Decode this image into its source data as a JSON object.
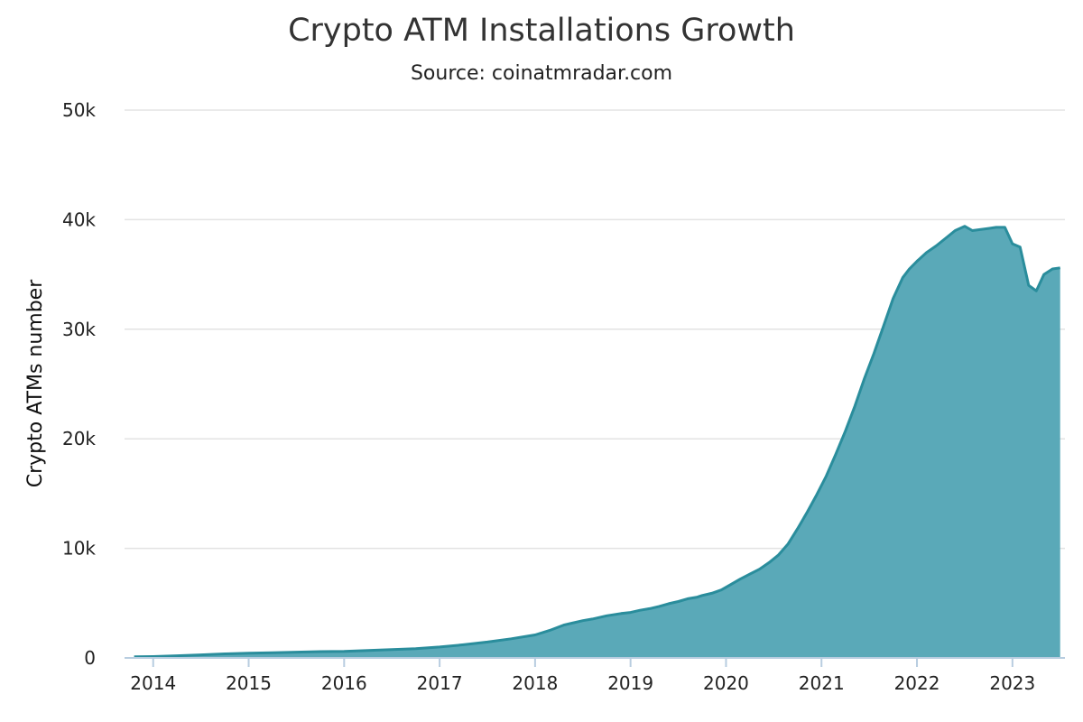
{
  "chart_data": {
    "type": "area",
    "title": "Crypto ATM Installations Growth",
    "subtitle": "Source: coinatmradar.com",
    "xlabel": "",
    "ylabel": "Crypto ATMs number",
    "xlim": [
      2013.7,
      2023.55
    ],
    "ylim": [
      0,
      50000
    ],
    "x_ticks": [
      2014,
      2015,
      2016,
      2017,
      2018,
      2019,
      2020,
      2021,
      2022,
      2023
    ],
    "y_ticks": [
      0,
      10000,
      20000,
      30000,
      40000,
      50000
    ],
    "y_tick_labels": [
      "0",
      "10k",
      "20k",
      "30k",
      "40k",
      "50k"
    ],
    "grid": "horizontal",
    "color": "#5aa9b8",
    "line_color": "#2a8d9c",
    "series": [
      {
        "x": [
          2013.8,
          2014.0,
          2014.25,
          2014.5,
          2014.75,
          2015.0,
          2015.25,
          2015.5,
          2015.75,
          2016.0,
          2016.25,
          2016.5,
          2016.75,
          2017.0,
          2017.25,
          2017.5,
          2017.75,
          2018.0,
          2018.15,
          2018.3,
          2018.5,
          2018.6,
          2018.75,
          2018.9,
          2019.0,
          2019.1,
          2019.2,
          2019.3,
          2019.4,
          2019.5,
          2019.6,
          2019.7,
          2019.75,
          2019.85,
          2019.95,
          2020.05,
          2020.15,
          2020.25,
          2020.35,
          2020.45,
          2020.55,
          2020.65,
          2020.75,
          2020.85,
          2020.95,
          2021.05,
          2021.15,
          2021.25,
          2021.35,
          2021.45,
          2021.55,
          2021.65,
          2021.75,
          2021.85,
          2021.92,
          2022.0,
          2022.1,
          2022.2,
          2022.3,
          2022.4,
          2022.5,
          2022.58,
          2022.67,
          2022.75,
          2022.83,
          2022.92,
          2023.0,
          2023.08,
          2023.17,
          2023.25,
          2023.33,
          2023.42,
          2023.5
        ],
        "values": [
          100,
          120,
          200,
          280,
          370,
          430,
          480,
          530,
          580,
          600,
          680,
          760,
          850,
          1000,
          1200,
          1450,
          1750,
          2100,
          2500,
          3000,
          3400,
          3550,
          3850,
          4050,
          4150,
          4350,
          4500,
          4700,
          4950,
          5150,
          5400,
          5550,
          5700,
          5900,
          6200,
          6700,
          7200,
          7650,
          8100,
          8700,
          9400,
          10400,
          11800,
          13300,
          14900,
          16600,
          18600,
          20700,
          23000,
          25500,
          27800,
          30300,
          32800,
          34700,
          35500,
          36200,
          37000,
          37600,
          38300,
          39000,
          39400,
          39000,
          39100,
          39200,
          39300,
          39300,
          37800,
          37500,
          34000,
          33500,
          35000,
          35500,
          35600
        ]
      }
    ]
  }
}
